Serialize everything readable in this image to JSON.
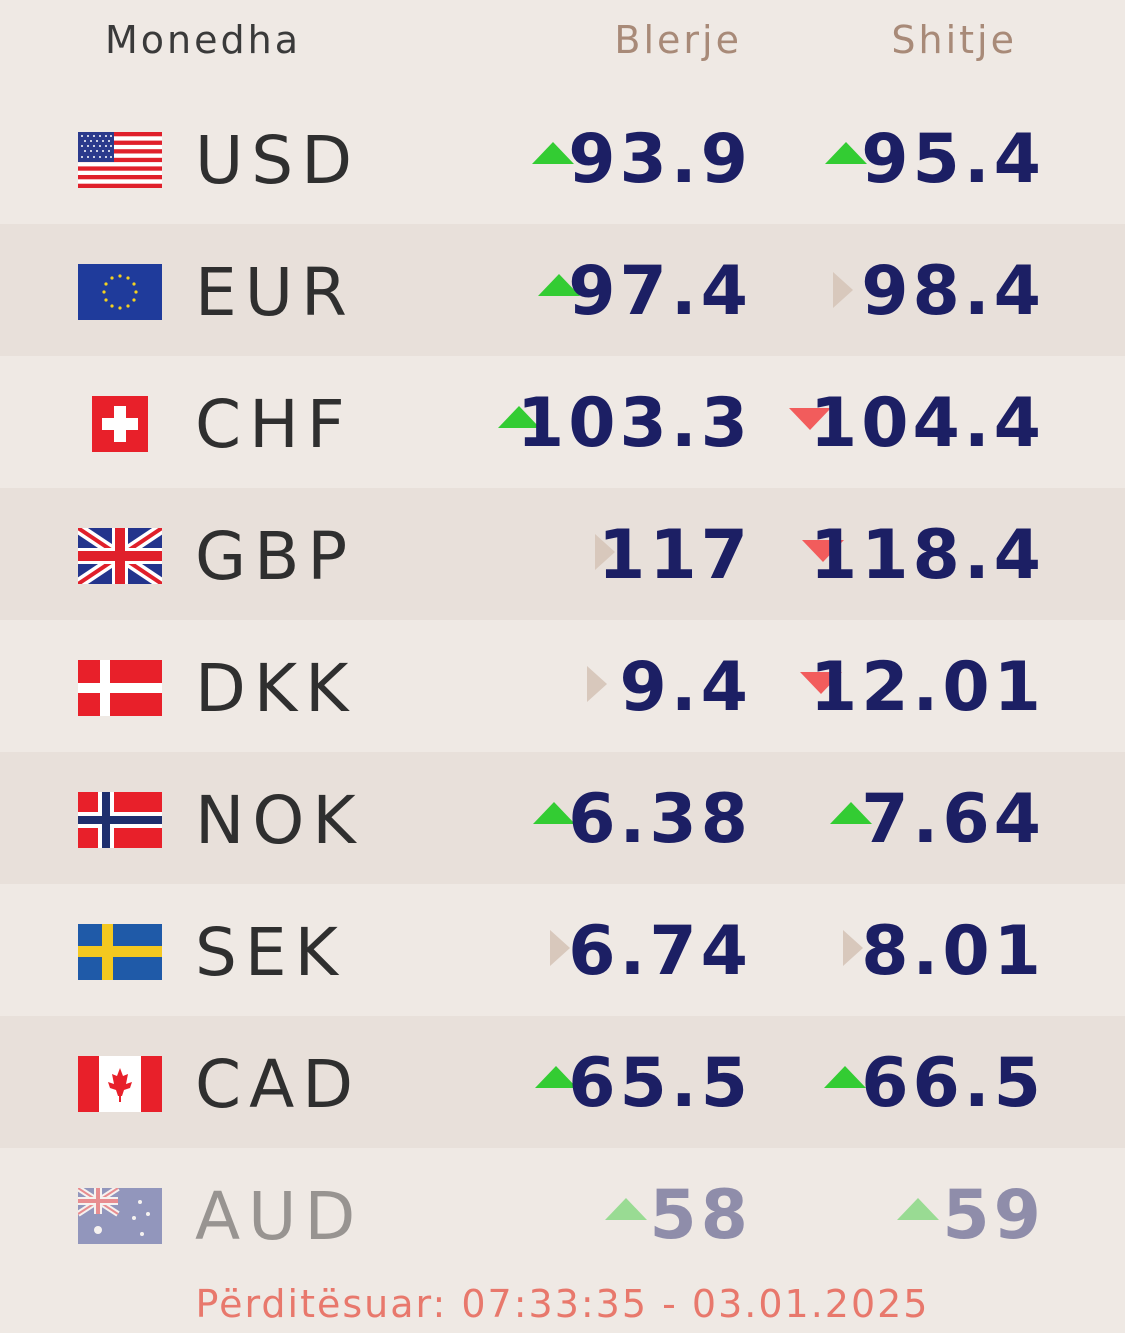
{
  "header": {
    "currency_label": "Monedha",
    "buy_label": "Blerje",
    "sell_label": "Shitje"
  },
  "indicator_colors": {
    "up": "#33cc33",
    "down": "#f25c5c",
    "flat": "#d8c8bc"
  },
  "rows": [
    {
      "code": "USD",
      "flag": "us-flag-icon",
      "buy": "93.9",
      "buy_trend": "up",
      "sell": "95.4",
      "sell_trend": "up"
    },
    {
      "code": "EUR",
      "flag": "eu-flag-icon",
      "buy": "97.4",
      "buy_trend": "up",
      "sell": "98.4",
      "sell_trend": "flat"
    },
    {
      "code": "CHF",
      "flag": "ch-flag-icon",
      "buy": "103.3",
      "buy_trend": "up",
      "sell": "104.4",
      "sell_trend": "down"
    },
    {
      "code": "GBP",
      "flag": "gb-flag-icon",
      "buy": "117",
      "buy_trend": "flat",
      "sell": "118.4",
      "sell_trend": "down"
    },
    {
      "code": "DKK",
      "flag": "dk-flag-icon",
      "buy": "9.4",
      "buy_trend": "flat",
      "sell": "12.01",
      "sell_trend": "down"
    },
    {
      "code": "NOK",
      "flag": "no-flag-icon",
      "buy": "6.38",
      "buy_trend": "up",
      "sell": "7.64",
      "sell_trend": "up"
    },
    {
      "code": "SEK",
      "flag": "se-flag-icon",
      "buy": "6.74",
      "buy_trend": "flat",
      "sell": "8.01",
      "sell_trend": "flat"
    },
    {
      "code": "CAD",
      "flag": "ca-flag-icon",
      "buy": "65.5",
      "buy_trend": "up",
      "sell": "66.5",
      "sell_trend": "up"
    },
    {
      "code": "AUD",
      "flag": "au-flag-icon",
      "buy": "58",
      "buy_trend": "up",
      "sell": "59",
      "sell_trend": "up"
    }
  ],
  "footer": {
    "updated_text": "Përditësuar: 07:33:35 - 03.01.2025"
  }
}
